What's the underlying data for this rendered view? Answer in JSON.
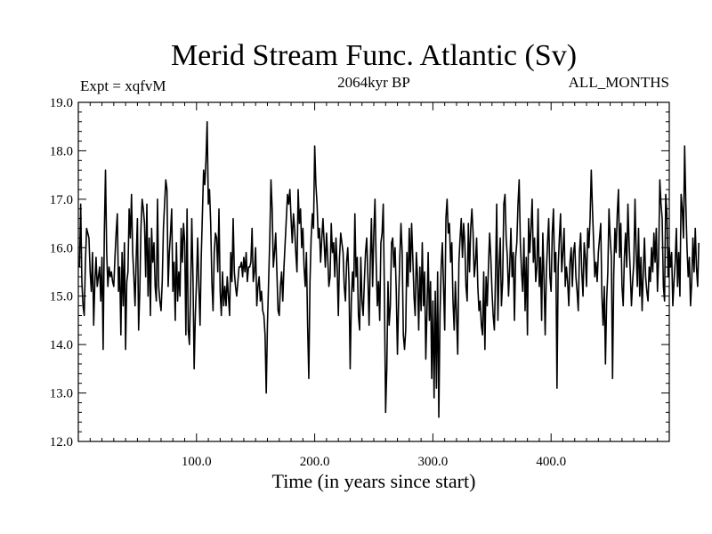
{
  "chart_data": {
    "type": "line",
    "title": "Merid Stream Func. Atlantic (Sv)",
    "subtitle_left": "Expt = xqfvM",
    "subtitle_center": "2064kyr BP",
    "subtitle_right": "ALL_MONTHS",
    "xlabel": "Time (in years since start)",
    "ylabel": "",
    "xlim": [
      0,
      500
    ],
    "ylim": [
      12.0,
      19.0
    ],
    "x_ticks": [
      {
        "value": 100,
        "label": "100.0"
      },
      {
        "value": 200,
        "label": "200.0"
      },
      {
        "value": 300,
        "label": "300.0"
      },
      {
        "value": 400,
        "label": "400.0"
      }
    ],
    "y_ticks": [
      {
        "value": 12,
        "label": "12.0"
      },
      {
        "value": 13,
        "label": "13.0"
      },
      {
        "value": 14,
        "label": "14.0"
      },
      {
        "value": 15,
        "label": "15.0"
      },
      {
        "value": 16,
        "label": "16.0"
      },
      {
        "value": 17,
        "label": "17.0"
      },
      {
        "value": 18,
        "label": "18.0"
      },
      {
        "value": 19,
        "label": "19.0"
      }
    ],
    "series": [
      {
        "name": "Merid Stream Func. Atlantic",
        "color": "#000000",
        "x_start": 1,
        "x_step": 1,
        "values": [
          15.6,
          16.9,
          15.3,
          14.8,
          14.6,
          15.7,
          16.4,
          16.3,
          16.2,
          15.5,
          15.1,
          15.9,
          14.4,
          15.3,
          15.8,
          15.2,
          15.4,
          15.6,
          14.9,
          15.8,
          13.9,
          16.3,
          17.6,
          15.9,
          15.2,
          15.6,
          15.4,
          15.5,
          15.3,
          15.2,
          15.8,
          16.3,
          16.7,
          15.1,
          15.6,
          14.2,
          15.9,
          14.8,
          16.1,
          13.9,
          15.3,
          15.5,
          16.8,
          16.2,
          17.1,
          15.9,
          15.4,
          14.8,
          15.8,
          16.6,
          14.3,
          15.1,
          16.4,
          17.0,
          16.8,
          16.5,
          15.4,
          16.9,
          15.0,
          16.2,
          14.6,
          16.4,
          15.7,
          16.1,
          15.2,
          14.9,
          17.0,
          15.2,
          14.9,
          14.7,
          15.3,
          16.4,
          16.9,
          17.4,
          17.2,
          15.2,
          15.9,
          16.3,
          16.8,
          15.1,
          15.7,
          14.5,
          16.1,
          14.9,
          15.5,
          15.0,
          16.4,
          15.7,
          16.5,
          16.1,
          14.2,
          16.8,
          14.3,
          14.0,
          15.1,
          16.6,
          15.4,
          13.5,
          14.6,
          15.3,
          16.2,
          15.2,
          14.4,
          15.8,
          16.7,
          17.6,
          17.3,
          17.8,
          18.6,
          16.9,
          17.2,
          16.5,
          15.3,
          14.7,
          15.9,
          16.3,
          16.2,
          15.5,
          16.8,
          15.1,
          14.6,
          15.5,
          14.8,
          15.2,
          14.8,
          15.4,
          15.0,
          14.6,
          15.9,
          15.3,
          16.6,
          15.5,
          15.2,
          15.0,
          15.3,
          15.6,
          15.6,
          15.7,
          15.4,
          15.8,
          15.5,
          15.9,
          15.3,
          15.6,
          15.6,
          15.7,
          16.4,
          15.3,
          15.5,
          16.0,
          14.8,
          15.2,
          15.4,
          14.9,
          15.1,
          14.7,
          14.6,
          14.2,
          13.0,
          14.4,
          15.3,
          16.2,
          17.4,
          16.8,
          15.6,
          15.9,
          16.3,
          15.5,
          14.7,
          14.6,
          15.2,
          15.5,
          14.9,
          15.6,
          16.1,
          16.6,
          17.1,
          16.9,
          17.2,
          16.6,
          16.1,
          16.7,
          16.4,
          15.9,
          15.5,
          17.2,
          16.5,
          16.8,
          16.0,
          16.4,
          15.6,
          15.2,
          15.9,
          14.4,
          13.3,
          15.3,
          16.2,
          16.7,
          16.4,
          18.1,
          17.3,
          16.9,
          16.2,
          16.4,
          15.7,
          16.2,
          16.6,
          16.1,
          15.6,
          16.3,
          15.8,
          15.2,
          15.4,
          16.5,
          15.9,
          16.1,
          15.4,
          16.2,
          15.6,
          14.6,
          15.8,
          16.3,
          16.1,
          15.9,
          15.2,
          14.9,
          15.7,
          16.0,
          15.3,
          13.5,
          14.9,
          15.5,
          15.1,
          16.7,
          15.4,
          15.8,
          14.6,
          14.3,
          15.8,
          14.9,
          14.6,
          15.3,
          15.9,
          16.2,
          15.4,
          14.4,
          15.7,
          16.6,
          15.2,
          16.3,
          17.0,
          15.7,
          14.8,
          15.3,
          14.5,
          16.1,
          16.3,
          16.9,
          15.0,
          12.6,
          13.5,
          15.3,
          14.4,
          14.8,
          16.1,
          16.2,
          15.6,
          16.0,
          15.1,
          13.8,
          14.9,
          15.8,
          16.5,
          15.9,
          14.2,
          13.9,
          14.3,
          15.9,
          15.2,
          16.4,
          15.5,
          16.5,
          15.8,
          15.0,
          14.6,
          15.9,
          15.4,
          14.3,
          15.6,
          14.7,
          16.1,
          14.8,
          15.5,
          13.7,
          14.7,
          15.9,
          14.5,
          15.3,
          13.3,
          14.9,
          12.9,
          15.1,
          13.1,
          15.5,
          12.5,
          14.6,
          15.6,
          16.1,
          15.2,
          14.3,
          16.6,
          17.0,
          16.3,
          16.5,
          15.7,
          16.1,
          14.9,
          14.3,
          15.3,
          14.6,
          13.8,
          15.7,
          16.2,
          16.6,
          15.8,
          16.5,
          16.1,
          15.2,
          14.9,
          16.5,
          15.5,
          16.4,
          16.8,
          16.3,
          15.4,
          15.7,
          16.2,
          15.2,
          14.7,
          14.9,
          14.4,
          14.2,
          15.5,
          13.9,
          15.4,
          14.8,
          15.6,
          16.3,
          15.8,
          15.1,
          14.6,
          14.3,
          15.4,
          16.9,
          14.5,
          15.6,
          16.2,
          14.8,
          15.3,
          16.9,
          17.1,
          16.2,
          15.8,
          15.0,
          15.6,
          16.4,
          15.4,
          15.9,
          14.5,
          15.8,
          16.1,
          16.9,
          17.4,
          16.1,
          15.5,
          15.1,
          16.2,
          14.7,
          15.8,
          14.2,
          16.6,
          15.9,
          16.4,
          17.0,
          15.7,
          16.2,
          15.3,
          15.6,
          16.8,
          15.2,
          15.8,
          14.5,
          16.3,
          15.4,
          14.2,
          15.5,
          16.1,
          16.6,
          15.4,
          15.1,
          16.3,
          16.8,
          15.5,
          15.9,
          13.1,
          15.6,
          16.2,
          16.7,
          15.5,
          15.9,
          16.4,
          15.2,
          15.6,
          15.3,
          14.8,
          15.7,
          16.0,
          15.2,
          15.9,
          16.1,
          15.4,
          15.1,
          14.7,
          15.9,
          16.3,
          15.5,
          15.0,
          16.1,
          15.8,
          15.2,
          16.4,
          16.0,
          16.6,
          17.6,
          16.8,
          16.1,
          15.4,
          15.7,
          15.3,
          15.9,
          16.2,
          16.5,
          15.0,
          14.4,
          15.2,
          13.6,
          14.9,
          15.5,
          16.8,
          16.2,
          15.8,
          13.3,
          15.4,
          16.4,
          15.9,
          16.7,
          17.2,
          15.8,
          16.5,
          15.2,
          14.8,
          15.8,
          16.3,
          15.6,
          16.9,
          16.1,
          15.5,
          14.8,
          15.3,
          15.7,
          17.0,
          15.9,
          15.2,
          16.4,
          15.0,
          15.8,
          14.7,
          15.5,
          16.2,
          15.4,
          15.1,
          14.9,
          15.6,
          15.3,
          16.0,
          15.5,
          16.3,
          15.7,
          16.4,
          15.1,
          15.8,
          17.4,
          16.9,
          16.6,
          15.2,
          14.9,
          17.1,
          16.7,
          15.4,
          16.0,
          15.6,
          15.9,
          14.8,
          15.3,
          15.7,
          16.4,
          15.2,
          15.9,
          15.0,
          17.1,
          16.8,
          16.2,
          18.1,
          16.9,
          16.0,
          15.4,
          15.8,
          14.8,
          15.3,
          16.2,
          15.5,
          16.4,
          15.6,
          15.2,
          16.1
        ]
      }
    ],
    "grid": false
  }
}
